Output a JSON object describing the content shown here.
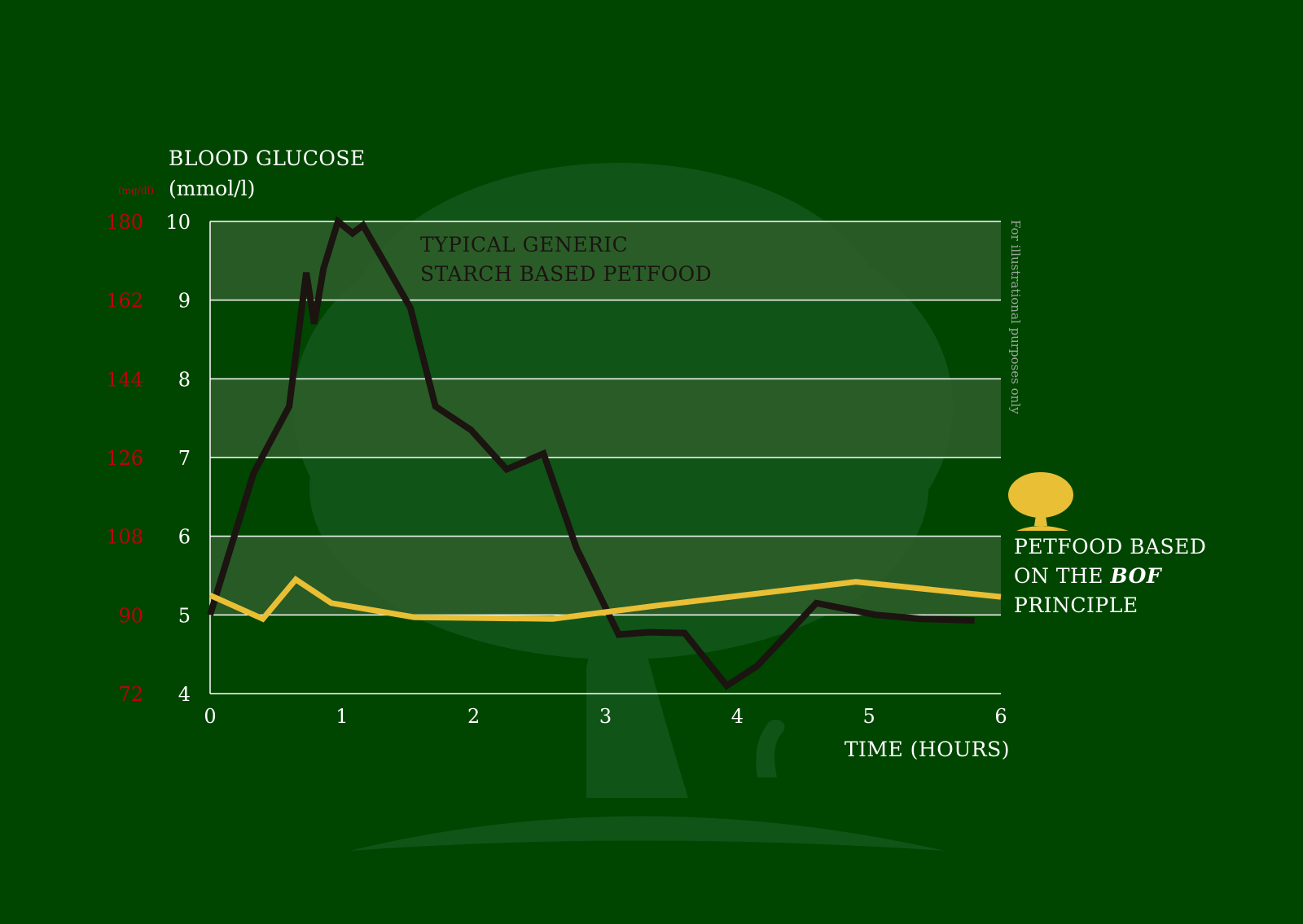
{
  "colors": {
    "background": "#004600",
    "band": "#2f5e2b",
    "gridline": "#ffffff",
    "starch_line": "#1b1411",
    "bof_line": "#e9bf35",
    "mgdl_text": "#c0000e",
    "text": "#ffffff",
    "starch_label": "#1b1411",
    "note_text": "#9aa89a",
    "tree_watermark": "#12561a",
    "logo": "#e9bf35"
  },
  "chart_data": {
    "type": "line",
    "ylabel": "BLOOD GLUCOSE",
    "ylabel_unit": "(mmol/l)",
    "ylabel_secondary_unit": "(mg/dl)",
    "xlabel": "TIME (HOURS)",
    "xlim": [
      0,
      6
    ],
    "ylim": [
      4,
      10
    ],
    "x_ticks": [
      "0",
      "1",
      "2",
      "3",
      "4",
      "5",
      "6"
    ],
    "y_ticks": [
      "4",
      "5",
      "6",
      "7",
      "8",
      "9",
      "10"
    ],
    "y_ticks_secondary": [
      "72",
      "90",
      "108",
      "126",
      "144",
      "162",
      "180"
    ],
    "banded_rows": true,
    "grid": true,
    "note": "For illustrational purposes only",
    "series": [
      {
        "name": "TYPICAL GENERIC STARCH BASED PETFOOD",
        "label_lines": [
          "TYPICAL GENERIC",
          "STARCH BASED PETFOOD"
        ],
        "color_key": "starch_line",
        "points": [
          [
            0,
            5.0
          ],
          [
            0.33,
            6.8
          ],
          [
            0.6,
            7.65
          ],
          [
            0.73,
            9.35
          ],
          [
            0.79,
            8.7
          ],
          [
            0.86,
            9.4
          ],
          [
            0.97,
            10.0
          ],
          [
            1.08,
            9.85
          ],
          [
            1.16,
            9.95
          ],
          [
            1.35,
            9.4
          ],
          [
            1.52,
            8.9
          ],
          [
            1.71,
            7.65
          ],
          [
            1.98,
            7.35
          ],
          [
            2.25,
            6.85
          ],
          [
            2.53,
            7.05
          ],
          [
            2.78,
            5.85
          ],
          [
            3.1,
            4.75
          ],
          [
            3.33,
            4.78
          ],
          [
            3.6,
            4.77
          ],
          [
            3.92,
            4.1
          ],
          [
            4.15,
            4.35
          ],
          [
            4.6,
            5.15
          ],
          [
            5.05,
            5.0
          ],
          [
            5.4,
            4.95
          ],
          [
            5.8,
            4.93
          ]
        ]
      },
      {
        "name": "PETFOOD BASED ON THE BOF PRINCIPLE",
        "label_lines": [
          "PETFOOD BASED",
          "ON THE ",
          "BOF",
          "PRINCIPLE"
        ],
        "color_key": "bof_line",
        "points": [
          [
            0,
            5.25
          ],
          [
            0.4,
            4.95
          ],
          [
            0.65,
            5.45
          ],
          [
            0.92,
            5.15
          ],
          [
            1.55,
            4.97
          ],
          [
            2.6,
            4.95
          ],
          [
            3.4,
            5.12
          ],
          [
            4.9,
            5.42
          ],
          [
            6.0,
            5.23
          ]
        ]
      }
    ]
  }
}
